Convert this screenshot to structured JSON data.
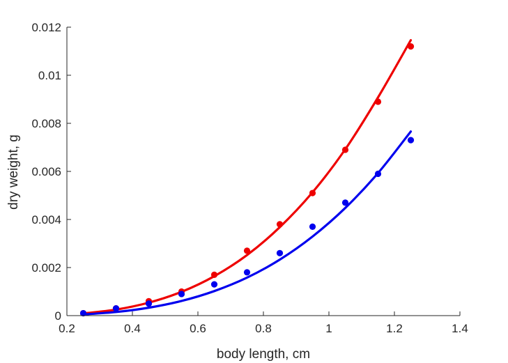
{
  "chart_data": {
    "type": "scatter",
    "title": "",
    "xlabel": "body length, cm",
    "ylabel": "dry weight, g",
    "xlim": [
      0.2,
      1.4
    ],
    "ylim": [
      0,
      0.012
    ],
    "xticks": [
      0.2,
      0.4,
      0.6,
      0.8,
      1.0,
      1.2,
      1.4
    ],
    "xtick_labels": [
      "0.2",
      "0.4",
      "0.6",
      "0.8",
      "1",
      "1.2",
      "1.4"
    ],
    "yticks": [
      0,
      0.002,
      0.004,
      0.006,
      0.008,
      0.01,
      0.012
    ],
    "ytick_labels": [
      "0",
      "0.002",
      "0.004",
      "0.006",
      "0.008",
      "0.01",
      "0.012"
    ],
    "grid": false,
    "legend": false,
    "x": [
      0.25,
      0.35,
      0.45,
      0.55,
      0.65,
      0.75,
      0.85,
      0.95,
      1.05,
      1.15,
      1.25
    ],
    "series": [
      {
        "color": "#ee0000",
        "points": [
          0.0001,
          0.0003,
          0.0006,
          0.001,
          0.0017,
          0.0027,
          0.0038,
          0.0051,
          0.0069,
          0.0089,
          0.0112
        ],
        "fit": [
          9e-05,
          0.00025,
          0.00054,
          0.00099,
          0.00164,
          0.00252,
          0.00368,
          0.00513,
          0.00692,
          0.00908,
          0.01146
        ]
      },
      {
        "color": "#0000ee",
        "points": [
          0.0001,
          0.0003,
          0.0005,
          0.0009,
          0.0013,
          0.0018,
          0.0026,
          0.0037,
          0.0047,
          0.0059,
          0.0073
        ],
        "fit": [
          5e-05,
          0.00015,
          0.00033,
          0.00061,
          0.00102,
          0.00158,
          0.00233,
          0.00329,
          0.00448,
          0.00593,
          0.00766
        ]
      }
    ]
  }
}
